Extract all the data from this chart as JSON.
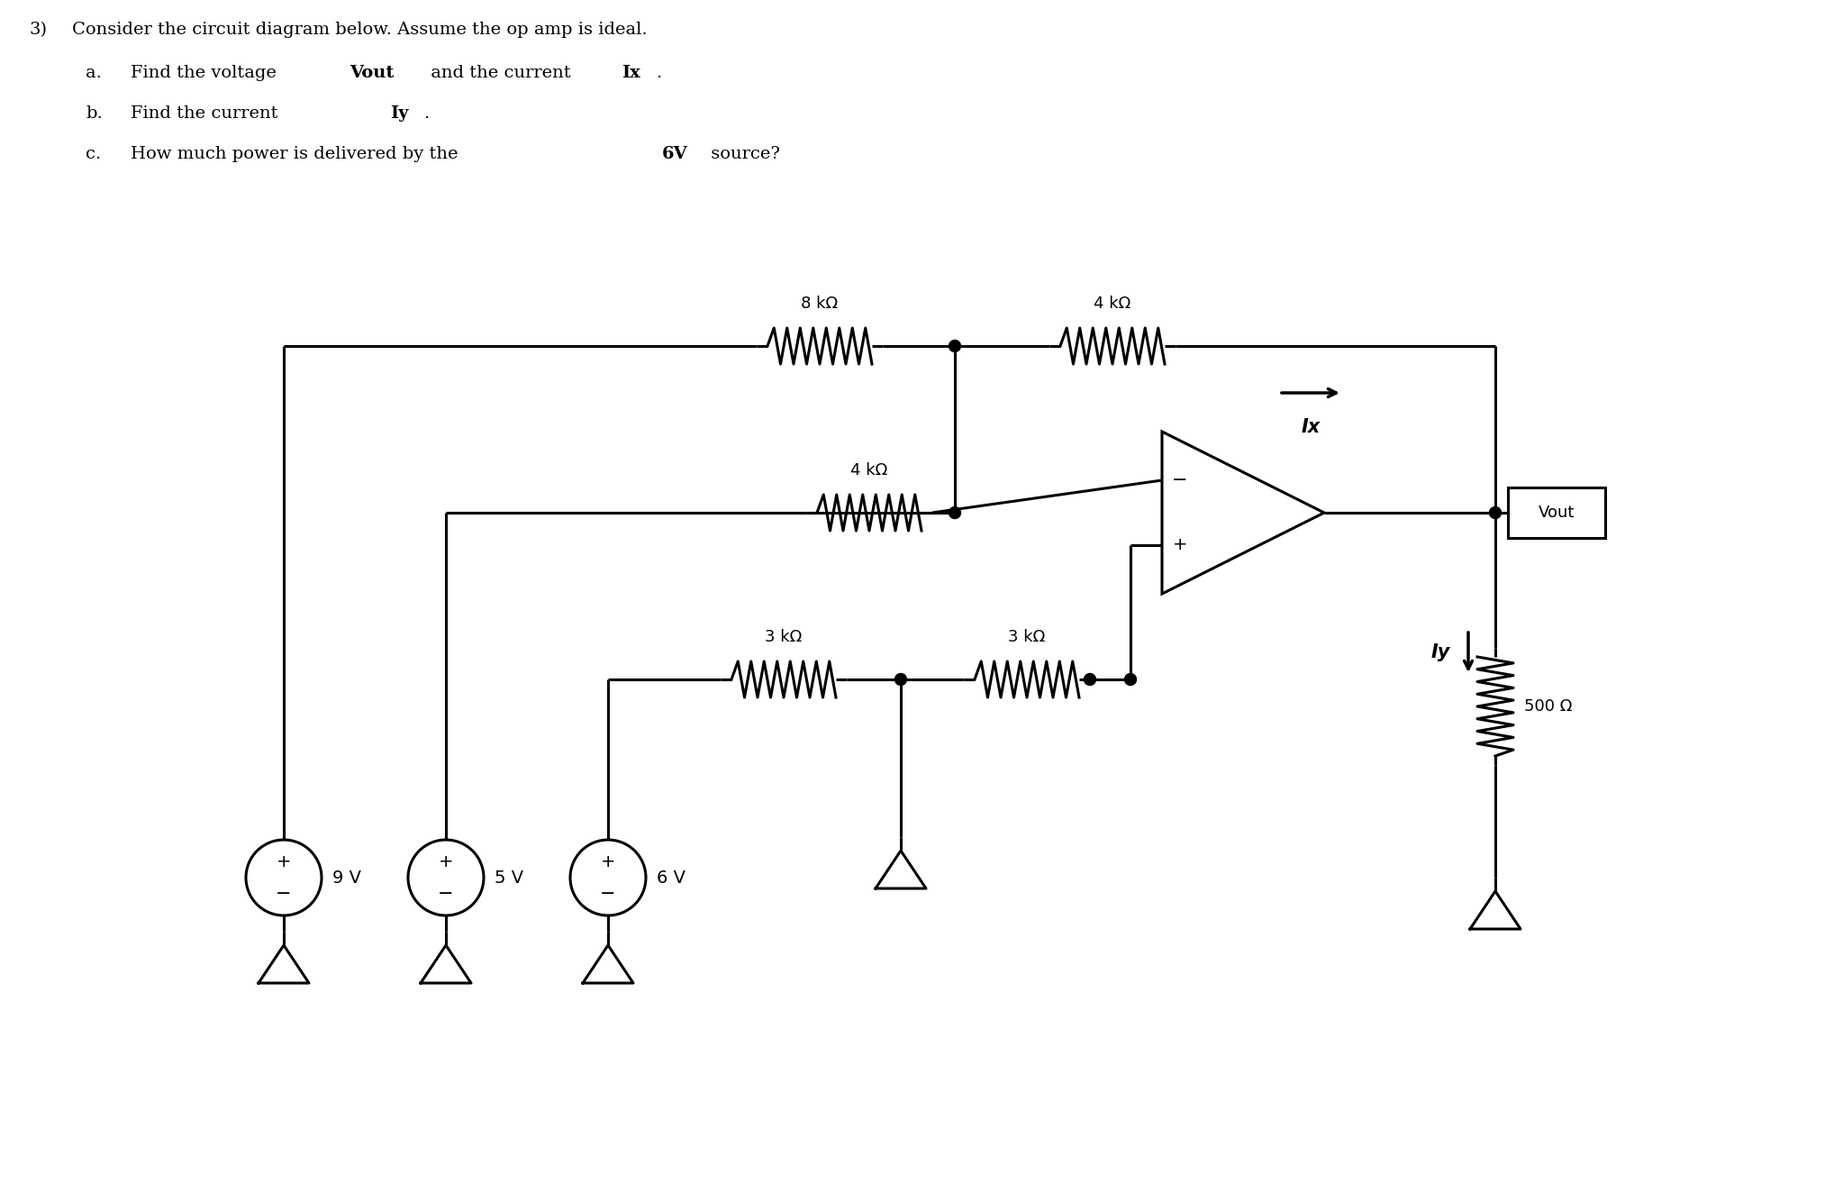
{
  "bg_color": "#ffffff",
  "line_color": "#000000",
  "resistor_8k_label": "8 kΩ",
  "resistor_4k_top_label": "4 kΩ",
  "resistor_4k_mid_label": "4 kΩ",
  "resistor_3k_left_label": "3 kΩ",
  "resistor_3k_right_label": "3 kΩ",
  "resistor_500_label": "500 Ω",
  "src_9v": "9 V",
  "src_5v": "5 V",
  "src_6v": "6 V",
  "ix_label": "Ix",
  "iy_label": "Iy",
  "vout_label": "Vout",
  "title_number": "3)",
  "title_text": "Consider the circuit diagram below. Assume the op amp is ideal.",
  "line_a_normal1": "Find the voltage ",
  "line_a_bold1": "Vout",
  "line_a_normal2": " and the current ",
  "line_a_bold2": "Ix",
  "line_a_normal3": ".",
  "line_b_normal1": "Find the current ",
  "line_b_bold1": "Iy",
  "line_b_normal2": ".",
  "line_c_normal1": "How much power is delivered by the ",
  "line_c_bold1": "6V",
  "line_c_normal2": " source?"
}
